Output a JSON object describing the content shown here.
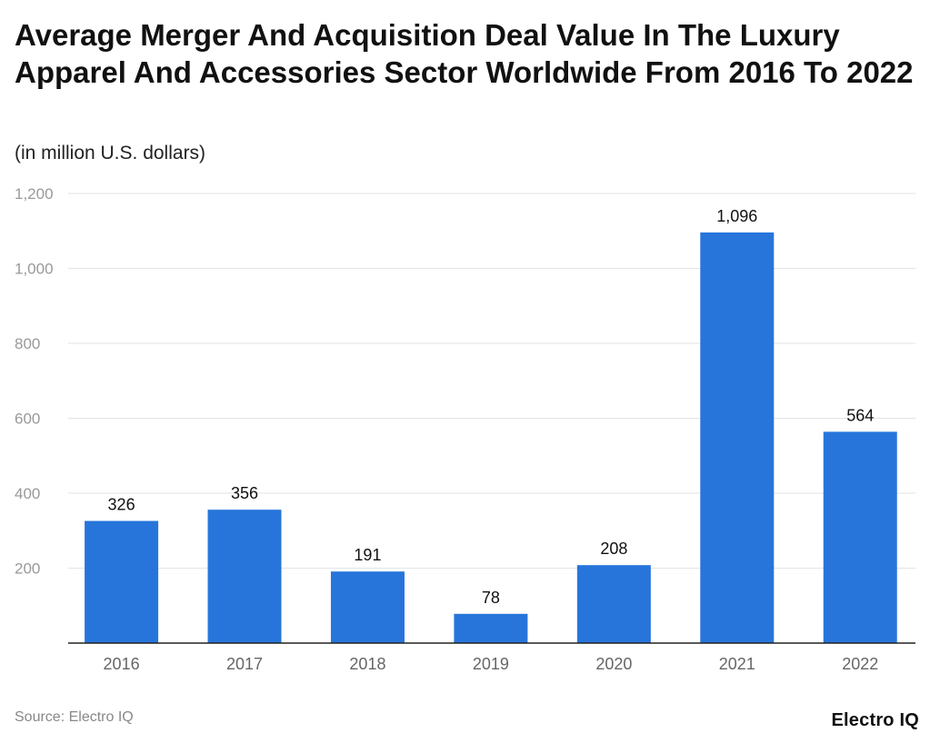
{
  "chart_data": {
    "type": "bar",
    "title": "Average Merger And Acquisition Deal Value In The Luxury Apparel And Accessories Sector Worldwide From 2016 To 2022",
    "subtitle": "(in million U.S. dollars)",
    "categories": [
      "2016",
      "2017",
      "2018",
      "2019",
      "2020",
      "2021",
      "2022"
    ],
    "values": [
      326,
      356,
      191,
      78,
      208,
      1096,
      564
    ],
    "data_labels": [
      "326",
      "356",
      "191",
      "78",
      "208",
      "1,096",
      "564"
    ],
    "xlabel": "",
    "ylabel": "",
    "ylim": [
      0,
      1200
    ],
    "yticks": [
      200,
      400,
      600,
      800,
      1000,
      1200
    ],
    "ytick_labels": [
      "200",
      "400",
      "600",
      "800",
      "1,000",
      "1,200"
    ],
    "grid": true,
    "legend": "none",
    "bar_color": "#2775DB"
  },
  "footer": {
    "source": "Source: Electro IQ",
    "logo": "Electro IQ"
  }
}
